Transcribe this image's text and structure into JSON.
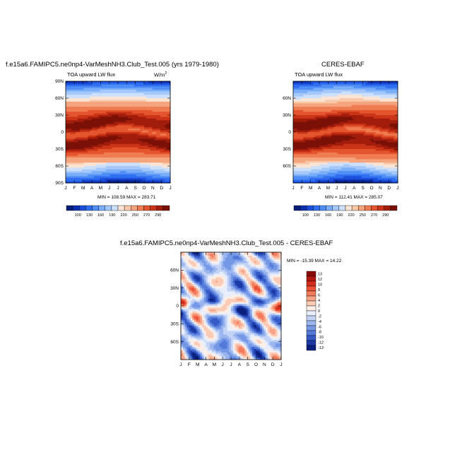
{
  "panels": [
    {
      "title": "f.e15a6.FAMIPC5.ne0np4-VarMeshNH3.Club_Test.005 (yrs 1979-1980)",
      "variable": "TOA upward LW flux",
      "units": "W/m",
      "units_sup": "2",
      "minmax": "MIN = 108.59 MAX = 283.71"
    },
    {
      "title": "CERES-EBAF",
      "variable": "TOA upward LW flux",
      "minmax": "MIN = 112.41 MAX = 285.07"
    },
    {
      "title": "f.e15a6.FAMIPC5.ne0np4-VarMeshNH3.Club_Test.005 - CERES-EBAF",
      "minmax": "MIN = -15.39 MAX =  14.22"
    }
  ],
  "chart_data": [
    {
      "type": "heatmap",
      "title": "f.e15a6.FAMIPC5.ne0np4-VarMeshNH3.Club_Test.005 (yrs 1979-1980)",
      "subtitle": "TOA upward LW flux",
      "units": "W/m2",
      "x_ticks": [
        "J",
        "F",
        "M",
        "A",
        "M",
        "J",
        "J",
        "A",
        "S",
        "O",
        "N",
        "D",
        "J"
      ],
      "y_ticks": [
        "90N",
        "60N",
        "30N",
        "0",
        "30S",
        "60S",
        "90S"
      ],
      "ylim": [
        -90,
        90
      ],
      "colorbar_ticks": [
        "100",
        "130",
        "160",
        "190",
        "220",
        "250",
        "270",
        "290"
      ],
      "min": 108.59,
      "max": 283.71
    },
    {
      "type": "heatmap",
      "title": "CERES-EBAF",
      "subtitle": "TOA upward LW flux",
      "x_ticks": [
        "J",
        "F",
        "M",
        "A",
        "M",
        "J",
        "J",
        "A",
        "S",
        "O",
        "N",
        "D",
        "J"
      ],
      "y_ticks": [
        "60N",
        "30N",
        "0",
        "30S",
        "60S"
      ],
      "ylim": [
        -90,
        90
      ],
      "colorbar_ticks": [
        "100",
        "130",
        "160",
        "190",
        "220",
        "250",
        "270",
        "290"
      ],
      "min": 112.41,
      "max": 285.07
    },
    {
      "type": "heatmap",
      "title": "f.e15a6.FAMIPC5.ne0np4-VarMeshNH3.Club_Test.005 - CERES-EBAF",
      "x_ticks": [
        "J",
        "F",
        "M",
        "A",
        "M",
        "J",
        "J",
        "A",
        "S",
        "O",
        "N",
        "D",
        "J"
      ],
      "y_ticks": [
        "60N",
        "30N",
        "0",
        "30S",
        "60S"
      ],
      "ylim": [
        -90,
        90
      ],
      "colorbar_ticks": [
        "13",
        "12",
        "10",
        "8",
        "6",
        "4",
        "2",
        "0",
        "-2",
        "-4",
        "-6",
        "-8",
        "-10",
        "-12",
        "-13"
      ],
      "min": -15.39,
      "max": 14.22
    }
  ],
  "colors": {
    "field": [
      "#081d7a",
      "#0c2fb0",
      "#1c4fdc",
      "#2f6ef0",
      "#4f8ef6",
      "#7aaef8",
      "#a4c8fa",
      "#cde0fb",
      "#fbe4d3",
      "#f8c8a8",
      "#f5a57e",
      "#f07d52",
      "#e4552e",
      "#cc3418",
      "#a21d0c",
      "#7a1006"
    ],
    "diff": [
      "#8a0a06",
      "#b01810",
      "#d42c1c",
      "#ec5036",
      "#f47a5c",
      "#f8a488",
      "#fbcbb6",
      "#fdeee6",
      "#e8eefc",
      "#c3d3f6",
      "#9bb6ef",
      "#7598e6",
      "#5379da",
      "#355ac8",
      "#1c3aa6",
      "#0a1f7e"
    ]
  }
}
